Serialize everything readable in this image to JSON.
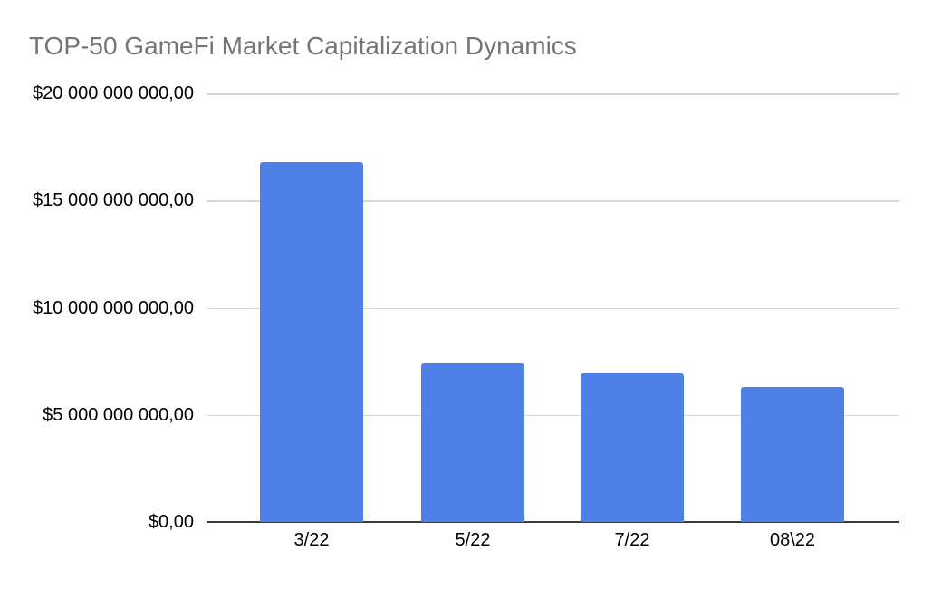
{
  "page": {
    "background_color": "#ffffff"
  },
  "chart": {
    "title_color": "#757575",
    "bar_color": "#4F80E8",
    "gridline_color": "#d7d7d7",
    "axis_line_color": "#3b3b3b",
    "tick_label_color": "#000000"
  },
  "chart_data": {
    "type": "bar",
    "title": "TOP-50 GameFi Market Capitalization Dynamics",
    "categories": [
      "3/22",
      "5/22",
      "7/22",
      "08\\22"
    ],
    "values": [
      16800000000,
      7400000000,
      6950000000,
      6300000000
    ],
    "series_name": "TOP-50 GameFi Market Capitalization",
    "xlabel": "",
    "ylabel": "",
    "ymin": 0,
    "ymax": 20000000000,
    "y_tick_step": 5000000000,
    "y_tick_labels": [
      "$20 000 000 000,00",
      "$15 000 000 000,00",
      "$10 000 000 000,00",
      "$5 000 000 000,00",
      "$0,00"
    ],
    "grid": true,
    "legend_position": "none",
    "number_format": "currency USD, space thousands separator, comma decimal"
  }
}
